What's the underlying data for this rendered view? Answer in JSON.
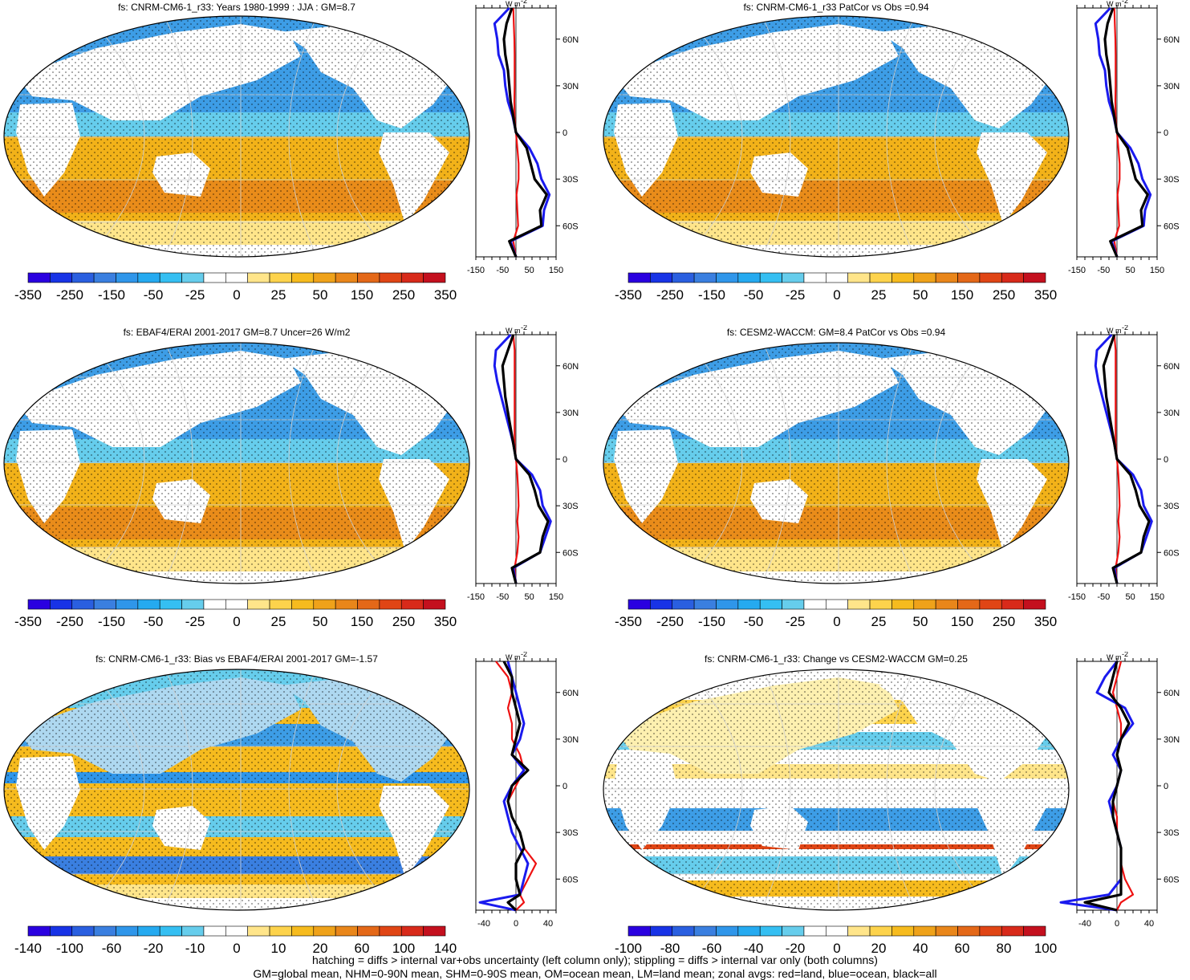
{
  "colors": {
    "land": "#ffffff",
    "ocean_neg": "#3d9de6",
    "ocean_pos": "#f2b219",
    "zonal_land": "#ee1111",
    "zonal_ocean": "#1a1aee",
    "zonal_all": "#000000"
  },
  "colorbars": {
    "mean": {
      "colors": [
        "#2a00e0",
        "#1833e6",
        "#2a5fe0",
        "#3a7fe0",
        "#2f96ea",
        "#25aaf0",
        "#35bff2",
        "#66cdec",
        "#ffffff",
        "#ffffff",
        "#ffe58a",
        "#fdd34c",
        "#f6bb1e",
        "#efa21a",
        "#e9861a",
        "#e46818",
        "#e04515",
        "#d82a1a",
        "#c4101e"
      ],
      "labels": [
        "-350",
        "-250",
        "-150",
        "-50",
        "-25",
        "0",
        "25",
        "50",
        "150",
        "250",
        "350"
      ]
    },
    "diff": {
      "colors": [
        "#2a00e0",
        "#1833e6",
        "#2a5fe0",
        "#3a7fe0",
        "#2f96ea",
        "#25aaf0",
        "#35bff2",
        "#66cdec",
        "#ffffff",
        "#ffffff",
        "#ffe58a",
        "#fdd34c",
        "#f6bb1e",
        "#efa21a",
        "#e9861a",
        "#e46818",
        "#e04515",
        "#d82a1a",
        "#c4101e"
      ],
      "labels": [
        "-140",
        "-100",
        "-60",
        "-20",
        "-10",
        "0",
        "10",
        "20",
        "60",
        "100",
        "140"
      ]
    },
    "change": {
      "colors": [
        "#2a00e0",
        "#1833e6",
        "#2a5fe0",
        "#3a7fe0",
        "#2f96ea",
        "#25aaf0",
        "#35bff2",
        "#66cdec",
        "#ffffff",
        "#ffffff",
        "#ffe58a",
        "#fdd34c",
        "#f6bb1e",
        "#efa21a",
        "#e9861a",
        "#e46818",
        "#e04515",
        "#d82a1a",
        "#c4101e"
      ],
      "labels": [
        "-100",
        "-80",
        "-60",
        "-40",
        "-20",
        "0",
        "20",
        "40",
        "60",
        "80",
        "100"
      ]
    }
  },
  "chart_data": [
    {
      "type": "heatmap",
      "title": "fs: CNRM-CM6-1_r33: Years 1980-1999 : JJA : GM=8.7",
      "field": "mean",
      "colorbar": "mean",
      "zonal": {
        "xlim": [
          -150,
          150
        ],
        "xticks": [
          "-150",
          "-50",
          "50",
          "150"
        ],
        "unit_label": "W m",
        "unit_exp": "-2",
        "lat_ticks": [
          "60N",
          "30N",
          "0",
          "30S",
          "60S"
        ],
        "lat": [
          80,
          70,
          60,
          50,
          40,
          30,
          20,
          10,
          0,
          -10,
          -20,
          -30,
          -40,
          -50,
          -60,
          -70,
          -80
        ],
        "land": [
          -10,
          -8,
          -6,
          -5,
          -5,
          -5,
          -6,
          -5,
          0,
          5,
          10,
          10,
          2,
          5,
          8,
          -10,
          0
        ],
        "ocean": [
          -25,
          -80,
          -70,
          -65,
          -45,
          -40,
          -30,
          -12,
          0,
          50,
          80,
          95,
          125,
          105,
          100,
          -20,
          0
        ],
        "all": [
          -15,
          -35,
          -45,
          -40,
          -30,
          -25,
          -20,
          -10,
          0,
          40,
          55,
          70,
          115,
          90,
          95,
          -25,
          0
        ]
      }
    },
    {
      "type": "heatmap",
      "title": "fs: CNRM-CM6-1_r33 PatCor vs Obs =0.94",
      "field": "mean",
      "colorbar": "mean",
      "zonal": {
        "xlim": [
          -150,
          150
        ],
        "xticks": [
          "-150",
          "-50",
          "50",
          "150"
        ],
        "unit_label": "W m",
        "unit_exp": "-2",
        "lat_ticks": [
          "60N",
          "30N",
          "0",
          "30S",
          "60S"
        ],
        "lat": [
          80,
          70,
          60,
          50,
          40,
          30,
          20,
          10,
          0,
          -10,
          -20,
          -30,
          -40,
          -50,
          -60,
          -70,
          -80
        ],
        "land": [
          -10,
          -8,
          -6,
          -5,
          -5,
          -5,
          -6,
          -5,
          0,
          5,
          10,
          10,
          2,
          5,
          8,
          -10,
          0
        ],
        "ocean": [
          -25,
          -80,
          -70,
          -65,
          -45,
          -40,
          -30,
          -12,
          0,
          50,
          80,
          95,
          125,
          105,
          100,
          -20,
          0
        ],
        "all": [
          -15,
          -35,
          -45,
          -40,
          -30,
          -25,
          -20,
          -10,
          0,
          40,
          55,
          70,
          115,
          90,
          95,
          -25,
          0
        ]
      }
    },
    {
      "type": "heatmap",
      "title": "fs: EBAF4/ERAI 2001-2017 GM=8.7 Uncer=26 W/m2",
      "field": "mean",
      "colorbar": "mean",
      "zonal": {
        "xlim": [
          -150,
          150
        ],
        "xticks": [
          "-150",
          "-50",
          "50",
          "150"
        ],
        "unit_label": "W m",
        "unit_exp": "-2",
        "lat_ticks": [
          "60N",
          "30N",
          "0",
          "30S",
          "60S"
        ],
        "lat": [
          80,
          70,
          60,
          50,
          40,
          30,
          20,
          10,
          0,
          -10,
          -20,
          -30,
          -40,
          -50,
          -60,
          -70,
          -80
        ],
        "land": [
          -10,
          -5,
          -5,
          -5,
          -5,
          -5,
          -5,
          -5,
          0,
          5,
          8,
          10,
          5,
          10,
          5,
          -5,
          0
        ],
        "ocean": [
          -20,
          -75,
          -80,
          -70,
          -55,
          -40,
          -25,
          -10,
          0,
          60,
          90,
          100,
          130,
          110,
          90,
          -10,
          0
        ],
        "all": [
          -10,
          -30,
          -50,
          -45,
          -40,
          -30,
          -20,
          -10,
          0,
          50,
          70,
          85,
          120,
          100,
          90,
          -15,
          0
        ]
      }
    },
    {
      "type": "heatmap",
      "title": "fs: CESM2-WACCM: GM=8.4 PatCor vs Obs =0.94",
      "field": "mean",
      "colorbar": "mean",
      "zonal": {
        "xlim": [
          -150,
          150
        ],
        "xticks": [
          "-150",
          "-50",
          "50",
          "150"
        ],
        "unit_label": "W m",
        "unit_exp": "-2",
        "lat_ticks": [
          "60N",
          "30N",
          "0",
          "30S",
          "60S"
        ],
        "lat": [
          80,
          70,
          60,
          50,
          40,
          30,
          20,
          10,
          0,
          -10,
          -20,
          -30,
          -40,
          -50,
          -60,
          -70,
          -80
        ],
        "land": [
          -10,
          -5,
          -5,
          -5,
          -5,
          -5,
          -5,
          -5,
          0,
          5,
          8,
          10,
          5,
          10,
          5,
          -5,
          0
        ],
        "ocean": [
          -20,
          -75,
          -80,
          -70,
          -55,
          -40,
          -25,
          -10,
          0,
          60,
          90,
          100,
          130,
          110,
          90,
          -10,
          0
        ],
        "all": [
          -10,
          -30,
          -50,
          -45,
          -40,
          -30,
          -20,
          -10,
          0,
          50,
          70,
          85,
          120,
          100,
          90,
          -15,
          0
        ]
      }
    },
    {
      "type": "heatmap",
      "title": "fs: CNRM-CM6-1_r33: Bias vs EBAF4/ERAI 2001-2017 GM=-1.57",
      "field": "diff",
      "colorbar": "diff",
      "zonal": {
        "xlim": [
          -50,
          50
        ],
        "xticks": [
          "-40",
          "0",
          "40"
        ],
        "unit_label": "W m",
        "unit_exp": "-2",
        "lat_ticks": [
          "60N",
          "30N",
          "0",
          "30S",
          "60S"
        ],
        "lat": [
          80,
          70,
          60,
          50,
          40,
          30,
          20,
          10,
          0,
          -10,
          -20,
          -30,
          -40,
          -50,
          -60,
          -70,
          -75,
          -80
        ],
        "land": [
          -25,
          -10,
          -5,
          -10,
          -5,
          -5,
          5,
          10,
          0,
          -10,
          -5,
          5,
          10,
          25,
          15,
          5,
          10,
          0
        ],
        "ocean": [
          -10,
          -5,
          0,
          5,
          10,
          5,
          -5,
          10,
          -5,
          -15,
          -10,
          -5,
          5,
          15,
          10,
          5,
          -45,
          0
        ],
        "all": [
          -15,
          -5,
          -5,
          0,
          5,
          0,
          -5,
          15,
          -5,
          -10,
          -5,
          5,
          10,
          0,
          0,
          5,
          -10,
          0
        ]
      }
    },
    {
      "type": "heatmap",
      "title": "fs: CNRM-CM6-1_r33: Change vs CESM2-WACCM GM=0.25",
      "field": "change",
      "colorbar": "change",
      "zonal": {
        "xlim": [
          -50,
          50
        ],
        "xticks": [
          "-40",
          "0",
          "40"
        ],
        "unit_label": "W m",
        "unit_exp": "-2",
        "lat_ticks": [
          "60N",
          "30N",
          "0",
          "30S",
          "60S"
        ],
        "lat": [
          80,
          70,
          60,
          50,
          40,
          30,
          20,
          10,
          0,
          -10,
          -20,
          -30,
          -40,
          -50,
          -60,
          -70,
          -75,
          -80
        ],
        "land": [
          5,
          0,
          -5,
          0,
          5,
          5,
          0,
          5,
          0,
          -5,
          0,
          0,
          5,
          5,
          10,
          20,
          5,
          0
        ],
        "ocean": [
          0,
          -15,
          -25,
          10,
          20,
          5,
          -5,
          5,
          0,
          -10,
          -5,
          0,
          5,
          5,
          5,
          -10,
          -70,
          0
        ],
        "all": [
          0,
          -5,
          -10,
          5,
          15,
          5,
          0,
          5,
          0,
          -5,
          -5,
          0,
          5,
          5,
          5,
          5,
          -40,
          0
        ]
      }
    }
  ],
  "footer": {
    "line1": "hatching = diffs > internal var+obs uncertainty (left column only); stippling = diffs > internal var only (both columns)",
    "line2": "GM=global mean, NHM=0-90N mean, SHM=0-90S mean, OM=ocean mean, LM=land mean; zonal avgs: red=land, blue=ocean, black=all"
  }
}
